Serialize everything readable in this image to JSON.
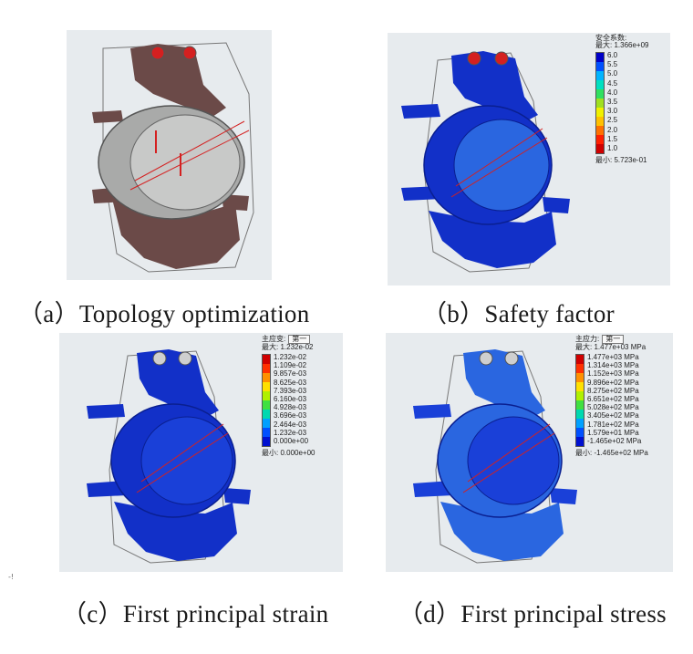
{
  "captions": {
    "a": "（a）Topology optimization",
    "b": "（b）Safety factor",
    "c": "（c）First principal strain",
    "d": "（d）First principal stress"
  },
  "legend_b": {
    "title": "安全系数:",
    "max": "最大: 1.366e+09",
    "min": "最小: 5.723e-01",
    "ticks": [
      "6.0",
      "5.5",
      "5.0",
      "4.5",
      "4.0",
      "3.5",
      "3.0",
      "2.5",
      "2.0",
      "1.5",
      "1.0"
    ]
  },
  "legend_c": {
    "title": "主应变:",
    "dropdown": "第一",
    "max": "最大: 1.232e-02",
    "min": "最小: 0.000e+00",
    "ticks": [
      "1.232e-02",
      "1.109e-02",
      "9.857e-03",
      "8.625e-03",
      "7.393e-03",
      "6.160e-03",
      "4.928e-03",
      "3.696e-03",
      "2.464e-03",
      "1.232e-03",
      "0.000e+00"
    ]
  },
  "legend_d": {
    "title": "主应力:",
    "dropdown": "第一",
    "max": "最大: 1.477e+03 MPa",
    "min": "最小: -1.465e+02 MPa",
    "ticks": [
      "1.477e+03 MPa",
      "1.314e+03 MPa",
      "1.152e+03 MPa",
      "9.896e+02 MPa",
      "8.275e+02 MPa",
      "6.651e+02 MPa",
      "5.028e+02 MPa",
      "3.405e+02 MPa",
      "1.781e+02 MPa",
      "1.579e+01 MPa",
      "-1.465e+02 MPa"
    ]
  },
  "colors": {
    "panel_bg": "#e7ebee",
    "topology": "#6b4a48",
    "ring_gray": "#a9aaa9",
    "fea_blue": "#1230c8",
    "fea_blue_light": "#2a66e0",
    "arrow_red": "#d42020",
    "scale_b": [
      "#0000c8",
      "#0050ff",
      "#00b4ff",
      "#00e0c0",
      "#30e060",
      "#a0e020",
      "#f0f000",
      "#ffc000",
      "#ff7000",
      "#ff2000",
      "#d00000"
    ],
    "scale_cd": [
      "#d00000",
      "#ff3000",
      "#ff9000",
      "#ffe000",
      "#b0f000",
      "#40e040",
      "#00d8b0",
      "#00a0ff",
      "#0050ff",
      "#0010d0"
    ]
  },
  "tiny_mark": "-!"
}
